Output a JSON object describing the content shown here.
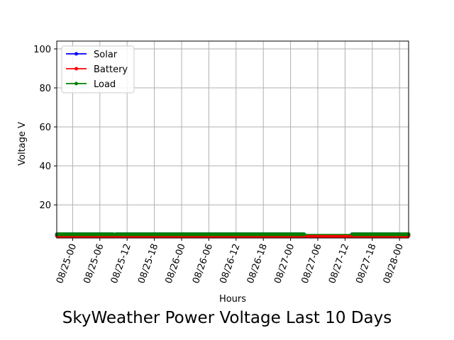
{
  "chart_data": {
    "type": "line",
    "title": "SkyWeather Power Voltage Last 10 Days",
    "xlabel": "Hours",
    "ylabel": "Voltage V",
    "x_axis": "datetime",
    "xlim": [
      "2019-08-24 20:30",
      "2019-08-28 02:00"
    ],
    "ylim": [
      3,
      104
    ],
    "x_ticks": [
      {
        "t": "2019-08-25 00:00",
        "label": "08/25-00"
      },
      {
        "t": "2019-08-25 06:00",
        "label": "08/25-06"
      },
      {
        "t": "2019-08-25 12:00",
        "label": "08/25-12"
      },
      {
        "t": "2019-08-25 18:00",
        "label": "08/25-18"
      },
      {
        "t": "2019-08-26 00:00",
        "label": "08/26-00"
      },
      {
        "t": "2019-08-26 06:00",
        "label": "08/26-06"
      },
      {
        "t": "2019-08-26 12:00",
        "label": "08/26-12"
      },
      {
        "t": "2019-08-26 18:00",
        "label": "08/26-18"
      },
      {
        "t": "2019-08-27 00:00",
        "label": "08/27-00"
      },
      {
        "t": "2019-08-27 06:00",
        "label": "08/27-06"
      },
      {
        "t": "2019-08-27 12:00",
        "label": "08/27-12"
      },
      {
        "t": "2019-08-27 18:00",
        "label": "08/27-18"
      },
      {
        "t": "2019-08-28 00:00",
        "label": "08/28-00"
      }
    ],
    "y_ticks": [
      20,
      40,
      60,
      80,
      100
    ],
    "grid": true,
    "legend": "upper-left",
    "series": [
      {
        "name": "Solar",
        "color": "#0000ff",
        "segments": [
          {
            "start": "2019-08-24 20:30",
            "end": "2019-08-25 09:00",
            "value": 4.9
          },
          {
            "start": "2019-08-25 09:30",
            "end": "2019-08-27 03:00",
            "value": 4.9
          },
          {
            "start": "2019-08-27 13:30",
            "end": "2019-08-28 02:00",
            "value": 4.9
          }
        ]
      },
      {
        "name": "Battery",
        "color": "#ff0000",
        "segments": [
          {
            "start": "2019-08-24 20:30",
            "end": "2019-08-28 02:00",
            "value": 4.1
          }
        ]
      },
      {
        "name": "Load",
        "color": "#008000",
        "segments": [
          {
            "start": "2019-08-24 20:30",
            "end": "2019-08-25 09:00",
            "value": 4.9
          },
          {
            "start": "2019-08-25 09:30",
            "end": "2019-08-27 03:00",
            "value": 4.9
          },
          {
            "start": "2019-08-27 03:00",
            "end": "2019-08-27 13:30",
            "value": 4.8,
            "markers": false
          },
          {
            "start": "2019-08-27 13:30",
            "end": "2019-08-28 02:00",
            "value": 4.9
          }
        ]
      }
    ]
  }
}
